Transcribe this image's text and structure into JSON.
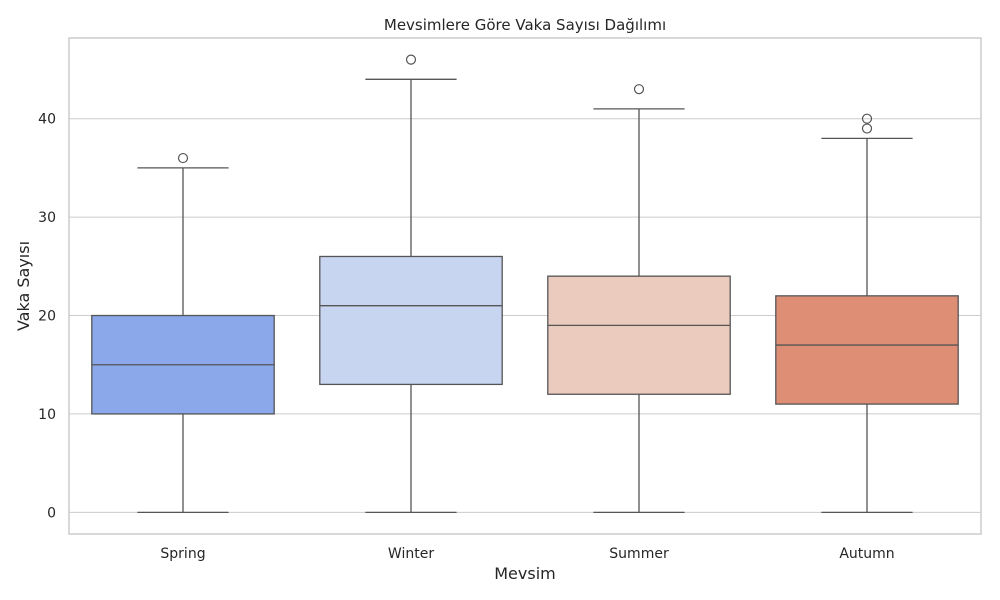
{
  "chart_data": {
    "type": "box",
    "title": "Mevsimlere Göre Vaka Sayısı Dağılımı",
    "xlabel": "Mevsim",
    "ylabel": "Vaka Sayısı",
    "ylim": [
      -2.2,
      48.2
    ],
    "yticks": [
      0,
      10,
      20,
      30,
      40
    ],
    "grid": true,
    "categories": [
      "Spring",
      "Winter",
      "Summer",
      "Autumn"
    ],
    "boxes": [
      {
        "category": "Spring",
        "whisker_low": 0,
        "q1": 10,
        "median": 15,
        "q3": 20,
        "whisker_high": 35,
        "fliers": [
          36
        ],
        "color": "#8aa8ea"
      },
      {
        "category": "Winter",
        "whisker_low": 0,
        "q1": 13,
        "median": 21,
        "q3": 26,
        "whisker_high": 44,
        "fliers": [
          46
        ],
        "color": "#c8d5f1"
      },
      {
        "category": "Summer",
        "whisker_low": 0,
        "q1": 12,
        "median": 19,
        "q3": 24,
        "whisker_high": 41,
        "fliers": [
          43
        ],
        "color": "#ebcbbd"
      },
      {
        "category": "Autumn",
        "whisker_low": 0,
        "q1": 11,
        "median": 17,
        "q3": 22,
        "whisker_high": 38,
        "fliers": [
          39,
          40
        ],
        "color": "#df8e76"
      }
    ]
  }
}
